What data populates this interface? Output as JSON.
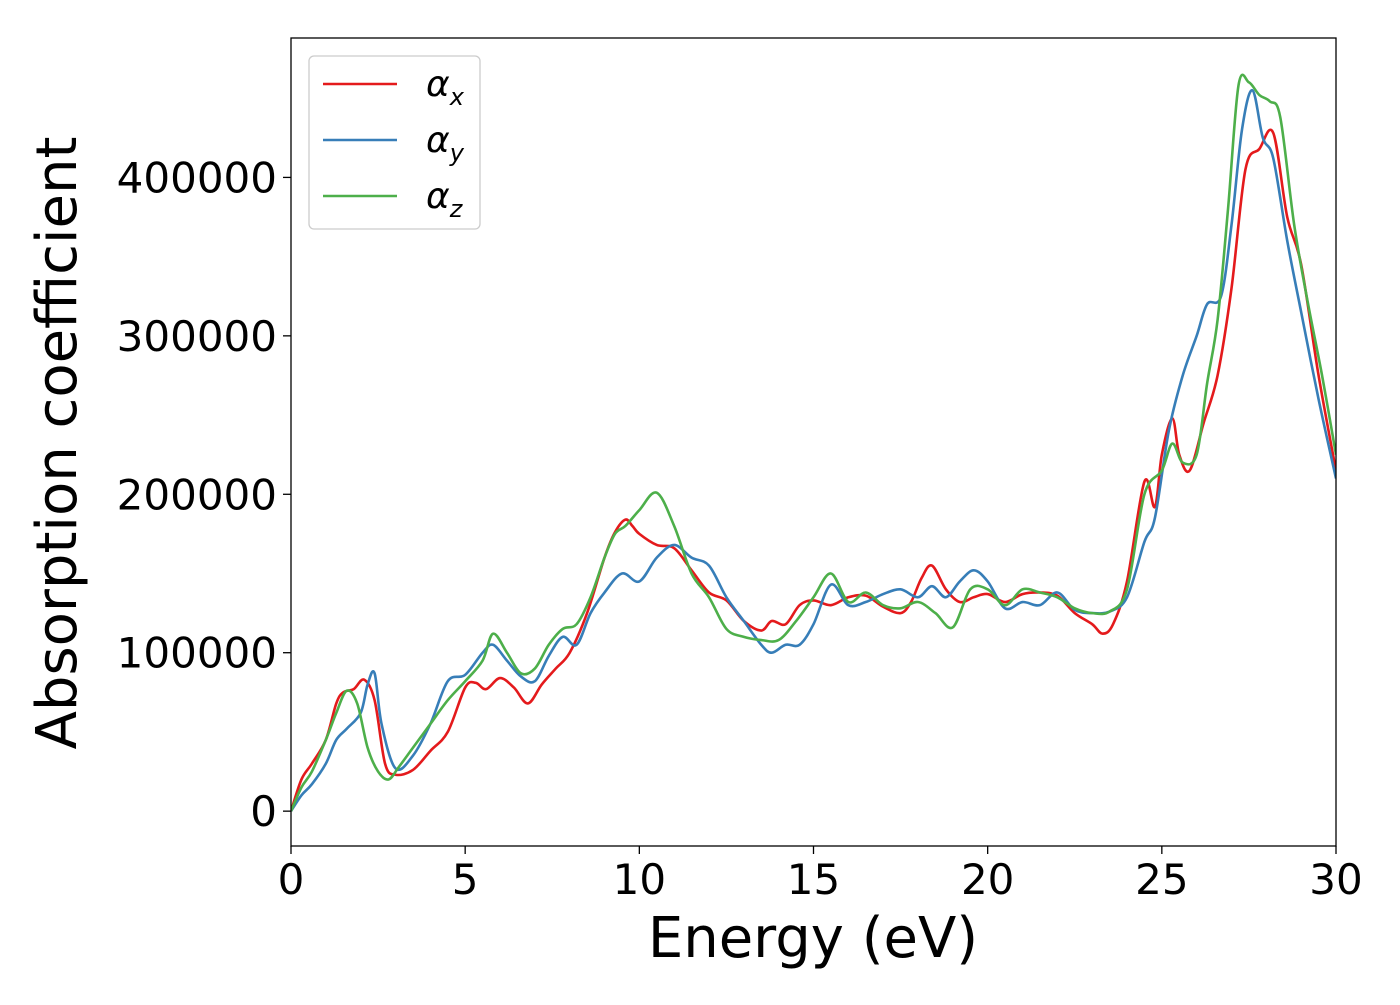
{
  "chart_data": {
    "type": "line",
    "xlabel": "Energy (eV)",
    "ylabel": "Absorption coefficient",
    "xlim": [
      0,
      30
    ],
    "ylim": [
      -22000,
      488000
    ],
    "xticks": [
      0,
      5,
      10,
      15,
      20,
      25,
      30
    ],
    "xtick_labels": [
      "0",
      "5",
      "10",
      "15",
      "20",
      "25",
      "30"
    ],
    "yticks": [
      0,
      100000,
      200000,
      300000,
      400000
    ],
    "ytick_labels": [
      "0",
      "100000",
      "200000",
      "300000",
      "400000"
    ],
    "grid": false,
    "legend": {
      "position": "top-left",
      "entries": [
        {
          "symbol": "α",
          "subscript": "x"
        },
        {
          "symbol": "α",
          "subscript": "y"
        },
        {
          "symbol": "α",
          "subscript": "z"
        }
      ]
    },
    "series": [
      {
        "color": "#e41a1c",
        "x": [
          0,
          0.3,
          0.6,
          1.0,
          1.3,
          1.5,
          1.8,
          2.1,
          2.4,
          2.7,
          3.0,
          3.5,
          4.0,
          4.5,
          5.0,
          5.3,
          5.6,
          6.0,
          6.4,
          6.8,
          7.2,
          7.6,
          8.0,
          8.5,
          9.0,
          9.3,
          9.6,
          9.8,
          10.0,
          10.5,
          11.0,
          11.5,
          12.0,
          12.5,
          13.0,
          13.5,
          13.8,
          14.2,
          14.6,
          15.0,
          15.5,
          16.0,
          16.5,
          17.0,
          17.5,
          17.8,
          18.1,
          18.4,
          18.8,
          19.2,
          19.6,
          20.0,
          20.5,
          21.0,
          21.5,
          22.0,
          22.5,
          23.0,
          23.3,
          23.6,
          24.0,
          24.5,
          24.8,
          25.0,
          25.3,
          25.5,
          25.8,
          26.2,
          26.6,
          27.0,
          27.4,
          27.8,
          28.2,
          28.6,
          29.0,
          29.5,
          30.0
        ],
        "y": [
          0,
          20000,
          30000,
          45000,
          68000,
          75000,
          77000,
          83000,
          70000,
          30000,
          23000,
          26000,
          38000,
          50000,
          78000,
          81000,
          77000,
          84000,
          78000,
          68000,
          80000,
          90000,
          100000,
          125000,
          160000,
          176000,
          184000,
          180000,
          175000,
          168000,
          166000,
          152000,
          138000,
          133000,
          120000,
          114000,
          120000,
          118000,
          130000,
          133000,
          130000,
          135000,
          136000,
          129000,
          125000,
          132000,
          147000,
          155000,
          140000,
          132000,
          135000,
          137000,
          132000,
          137000,
          138000,
          136000,
          125000,
          118000,
          112000,
          118000,
          145000,
          208000,
          192000,
          225000,
          248000,
          225000,
          215000,
          245000,
          275000,
          330000,
          405000,
          418000,
          428000,
          375000,
          345000,
          275000,
          215000
        ]
      },
      {
        "color": "#377eb8",
        "x": [
          0,
          0.3,
          0.6,
          1.0,
          1.3,
          1.6,
          2.0,
          2.2,
          2.4,
          2.6,
          3.0,
          3.5,
          4.0,
          4.5,
          5.0,
          5.5,
          5.8,
          6.2,
          6.6,
          7.0,
          7.4,
          7.8,
          8.2,
          8.6,
          9.0,
          9.5,
          10.0,
          10.5,
          11.0,
          11.5,
          12.0,
          12.5,
          13.0,
          13.5,
          13.8,
          14.2,
          14.6,
          15.0,
          15.5,
          16.0,
          16.5,
          17.0,
          17.5,
          18.0,
          18.4,
          18.8,
          19.2,
          19.6,
          20.0,
          20.5,
          21.0,
          21.5,
          22.0,
          22.5,
          23.0,
          23.5,
          24.0,
          24.5,
          24.8,
          25.2,
          25.6,
          26.0,
          26.3,
          26.7,
          27.0,
          27.3,
          27.6,
          27.9,
          28.2,
          28.6,
          29.0,
          29.5,
          30.0
        ],
        "y": [
          0,
          10000,
          17000,
          30000,
          45000,
          52000,
          62000,
          80000,
          87000,
          55000,
          27000,
          35000,
          55000,
          82000,
          86000,
          100000,
          105000,
          95000,
          85000,
          82000,
          98000,
          110000,
          105000,
          125000,
          138000,
          150000,
          145000,
          160000,
          168000,
          160000,
          155000,
          135000,
          120000,
          105000,
          100000,
          105000,
          105000,
          118000,
          143000,
          130000,
          132000,
          137000,
          140000,
          135000,
          142000,
          135000,
          145000,
          152000,
          145000,
          128000,
          132000,
          130000,
          138000,
          127000,
          125000,
          126000,
          135000,
          170000,
          185000,
          240000,
          275000,
          300000,
          320000,
          325000,
          370000,
          430000,
          455000,
          425000,
          412000,
          360000,
          315000,
          260000,
          210000
        ]
      },
      {
        "color": "#4daf4a",
        "x": [
          0,
          0.3,
          0.6,
          1.0,
          1.3,
          1.6,
          1.9,
          2.2,
          2.5,
          2.8,
          3.1,
          3.5,
          4.0,
          4.5,
          5.0,
          5.5,
          5.8,
          6.2,
          6.6,
          7.0,
          7.4,
          7.8,
          8.2,
          8.6,
          9.0,
          9.3,
          9.6,
          10.0,
          10.5,
          11.0,
          11.5,
          12.0,
          12.5,
          13.0,
          13.5,
          14.0,
          14.5,
          15.0,
          15.5,
          16.0,
          16.5,
          17.0,
          17.5,
          18.0,
          18.5,
          19.0,
          19.5,
          20.0,
          20.5,
          21.0,
          21.5,
          22.0,
          22.5,
          23.0,
          23.5,
          24.0,
          24.5,
          25.0,
          25.3,
          25.6,
          26.0,
          26.3,
          26.6,
          26.9,
          27.2,
          27.5,
          27.8,
          28.1,
          28.4,
          28.8,
          29.2,
          29.6,
          30.0
        ],
        "y": [
          0,
          15000,
          25000,
          45000,
          62000,
          76000,
          68000,
          40000,
          25000,
          20000,
          28000,
          40000,
          55000,
          70000,
          82000,
          95000,
          112000,
          100000,
          87000,
          90000,
          105000,
          115000,
          118000,
          135000,
          160000,
          175000,
          180000,
          190000,
          201000,
          180000,
          150000,
          135000,
          115000,
          110000,
          108000,
          108000,
          120000,
          135000,
          150000,
          132000,
          138000,
          130000,
          128000,
          132000,
          125000,
          116000,
          140000,
          140000,
          130000,
          140000,
          138000,
          135000,
          128000,
          125000,
          126000,
          140000,
          200000,
          215000,
          232000,
          220000,
          225000,
          270000,
          310000,
          380000,
          458000,
          460000,
          452000,
          448000,
          438000,
          370000,
          320000,
          275000,
          225000
        ]
      }
    ]
  }
}
